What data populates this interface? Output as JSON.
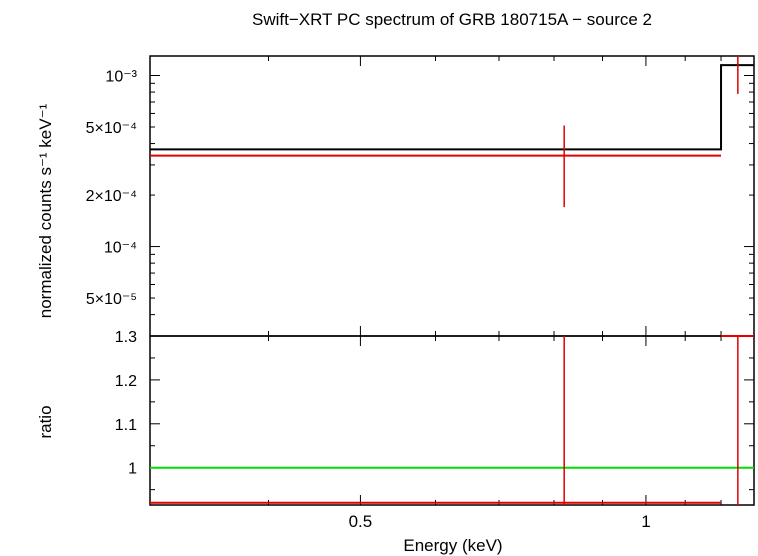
{
  "chart_data": [
    {
      "type": "line",
      "panel": "spectrum",
      "title": "Swift−XRT PC spectrum of GRB 180715A − source 2",
      "ylabel": "normalized counts s⁻¹ keV⁻¹",
      "yscale": "log",
      "xscale": "log",
      "xlim": [
        0.3,
        1.3
      ],
      "ylim": [
        3e-05,
        0.0013
      ],
      "yticks": [
        {
          "value": 0.001,
          "label": "10⁻³"
        },
        {
          "value": 0.0005,
          "label": "5×10⁻⁴"
        },
        {
          "value": 0.0002,
          "label": "2×10⁻⁴"
        },
        {
          "value": 0.0001,
          "label": "10⁻⁴"
        },
        {
          "value": 5e-05,
          "label": "5×10⁻⁵"
        }
      ],
      "model_steps": [
        {
          "x0": 0.3,
          "x1": 1.2,
          "y": 0.00037
        },
        {
          "x0": 1.2,
          "x1": 1.3,
          "y": 0.00115
        }
      ],
      "data_points": [
        {
          "x": 0.82,
          "xlo": 0.3,
          "xhi": 1.2,
          "y": 0.00034,
          "ylo": 0.00017,
          "yhi": 0.00051
        },
        {
          "x": 1.25,
          "xlo": 1.25,
          "xhi": 1.25,
          "y": 0.00115,
          "ylo": 0.00078,
          "yhi": 0.0014
        }
      ]
    },
    {
      "type": "line",
      "panel": "ratio",
      "xlabel": "Energy (keV)",
      "ylabel": "ratio",
      "xscale": "log",
      "xlim": [
        0.3,
        1.3
      ],
      "ylim": [
        0.915,
        1.3
      ],
      "yticks": [
        {
          "value": 1.3,
          "label": "1.3"
        },
        {
          "value": 1.2,
          "label": "1.2"
        },
        {
          "value": 1.1,
          "label": "1.1"
        },
        {
          "value": 1.0,
          "label": "1"
        }
      ],
      "xticks": [
        {
          "value": 0.5,
          "label": "0.5"
        },
        {
          "value": 1.0,
          "label": "1"
        }
      ],
      "reference_line": 1.0,
      "data_points": [
        {
          "x": 0.82,
          "xlo": 0.3,
          "xhi": 1.2,
          "y": 0.92,
          "ylo": 0.915,
          "yhi": 1.3
        },
        {
          "x": 1.25,
          "xlo": 1.2,
          "xhi": 1.3,
          "y": 1.3,
          "ylo": 0.915,
          "yhi": 1.3
        }
      ]
    }
  ],
  "colors": {
    "model": "#000000",
    "data": "#e00000",
    "reference": "#00dd00",
    "frame": "#000000"
  }
}
